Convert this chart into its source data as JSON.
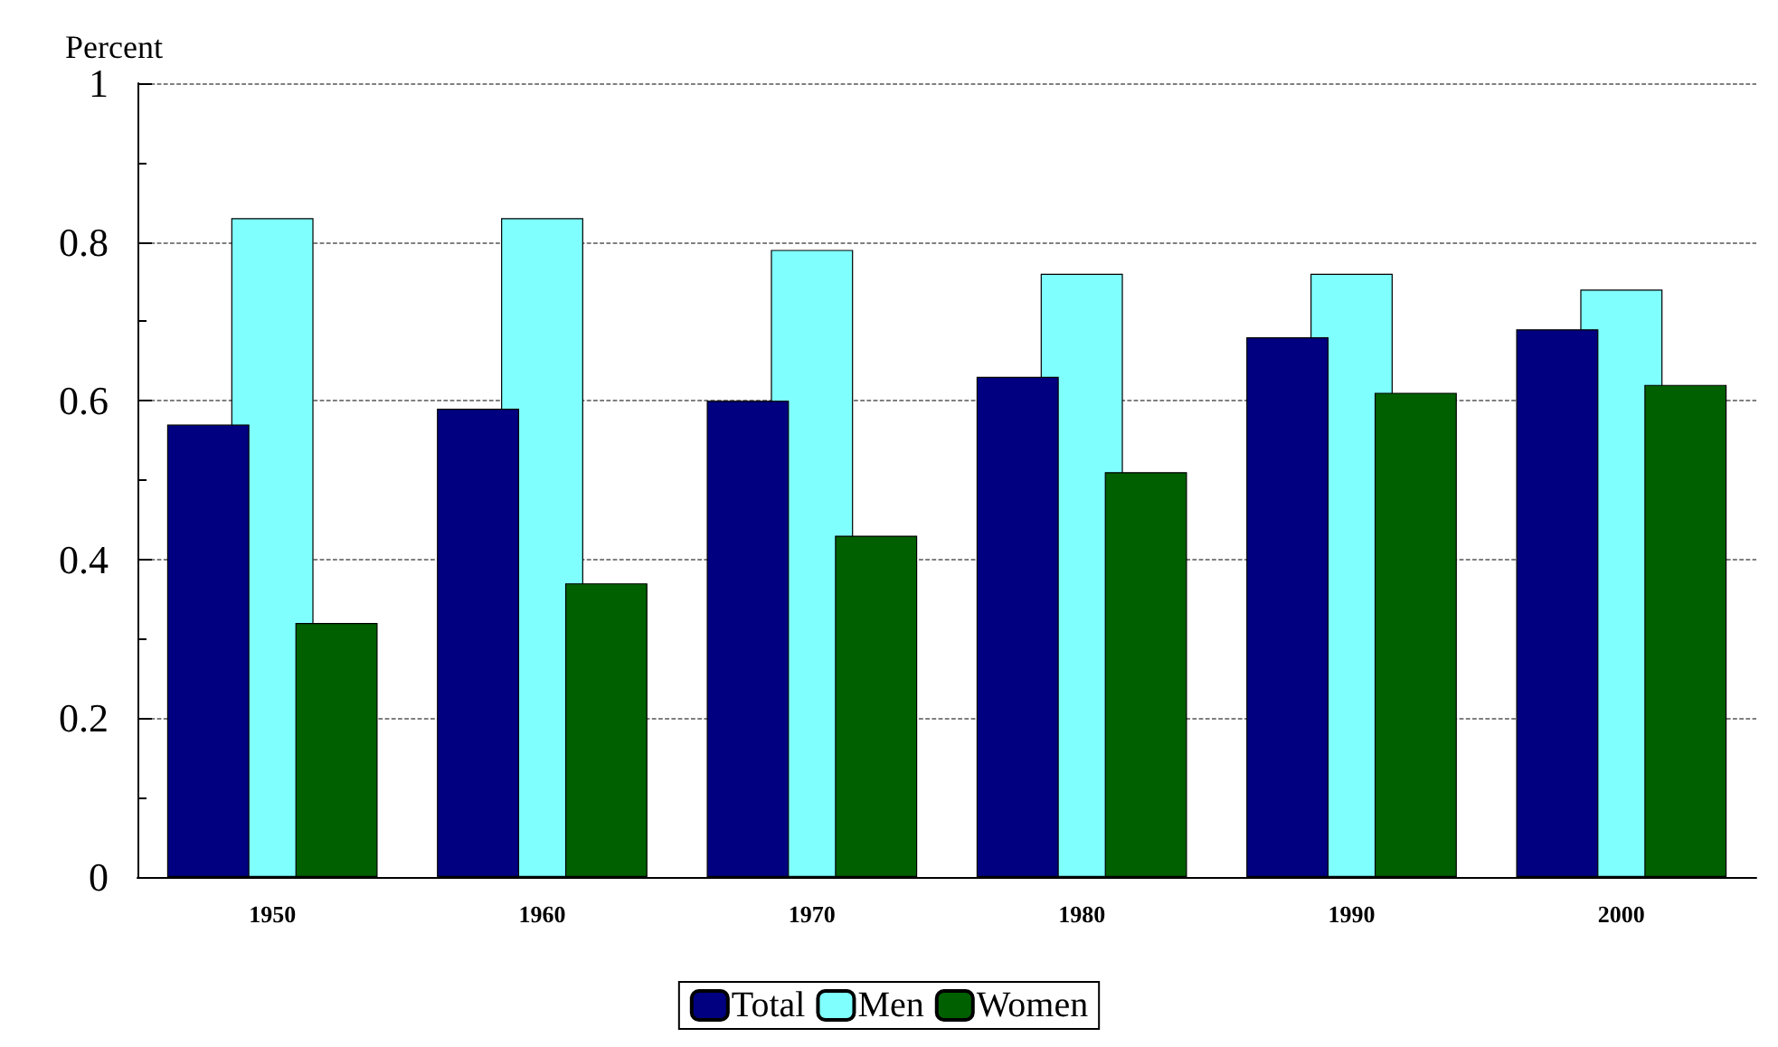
{
  "chart_data": {
    "type": "bar",
    "ylabel": "Percent",
    "categories": [
      "1950",
      "1960",
      "1970",
      "1980",
      "1990",
      "2000"
    ],
    "series": [
      {
        "name": "Total",
        "color": "#000080",
        "values": [
          0.57,
          0.59,
          0.6,
          0.63,
          0.68,
          0.69
        ]
      },
      {
        "name": "Men",
        "color": "#80ffff",
        "values": [
          0.83,
          0.83,
          0.79,
          0.76,
          0.76,
          0.74
        ]
      },
      {
        "name": "Women",
        "color": "#006000",
        "values": [
          0.32,
          0.37,
          0.43,
          0.51,
          0.61,
          0.62
        ]
      }
    ],
    "ylim": [
      0,
      1
    ],
    "yticks": [
      0,
      0.2,
      0.4,
      0.6,
      0.8,
      1
    ],
    "grid": "y",
    "legend": "bottom"
  }
}
